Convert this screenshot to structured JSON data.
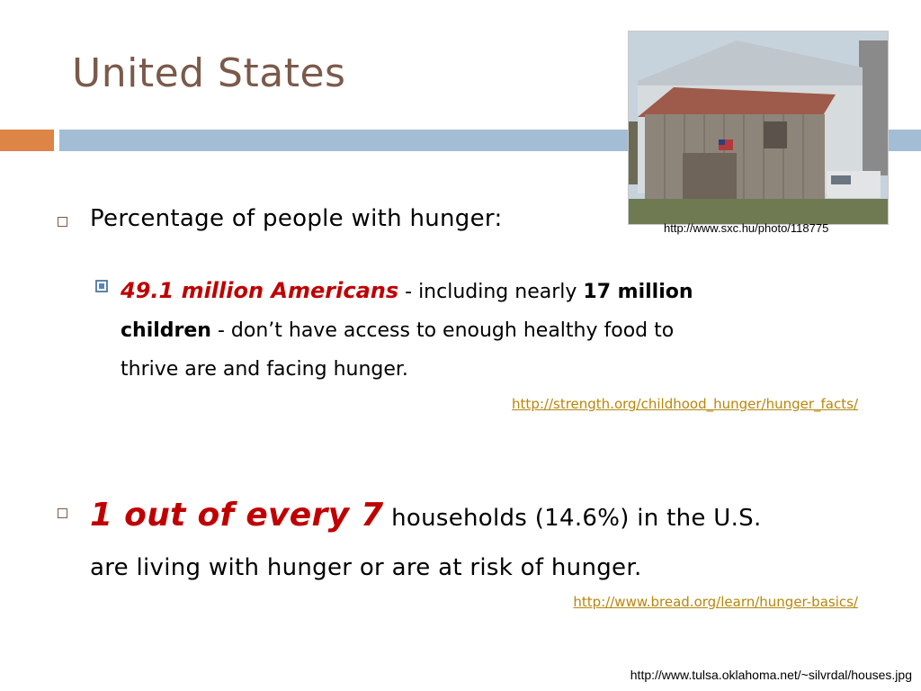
{
  "slide": {
    "title": "United States"
  },
  "photo": {
    "credit": "http://www.sxc.hu/photo/118775"
  },
  "bullet1": {
    "text": "Percentage of people with hunger:"
  },
  "sub_bullet": {
    "emphasis": "49.1 million Americans",
    "part1": " - including nearly ",
    "bold1": "17 million",
    "bold2": "children",
    "part2": " - don’t have access to enough healthy food to",
    "part3": "thrive are and facing hunger."
  },
  "link1": "http://strength.org/childhood_hunger/hunger_facts/",
  "bullet2": {
    "emphasis": "1 out of every 7",
    "part1": " households (14.6%)  in the U.S.",
    "part2": "are living with hunger or are at risk of hunger."
  },
  "link2": "http://www.bread.org/learn/hunger-basics/",
  "footer_credit": "http://www.tulsa.oklahoma.net/~silvrdal/houses.jpg",
  "colors": {
    "title": "#7b5a4b",
    "accent_orange": "#dd8447",
    "accent_blue": "#a3bdd4",
    "emphasis_red": "#c00000",
    "link": "#b8860b"
  }
}
